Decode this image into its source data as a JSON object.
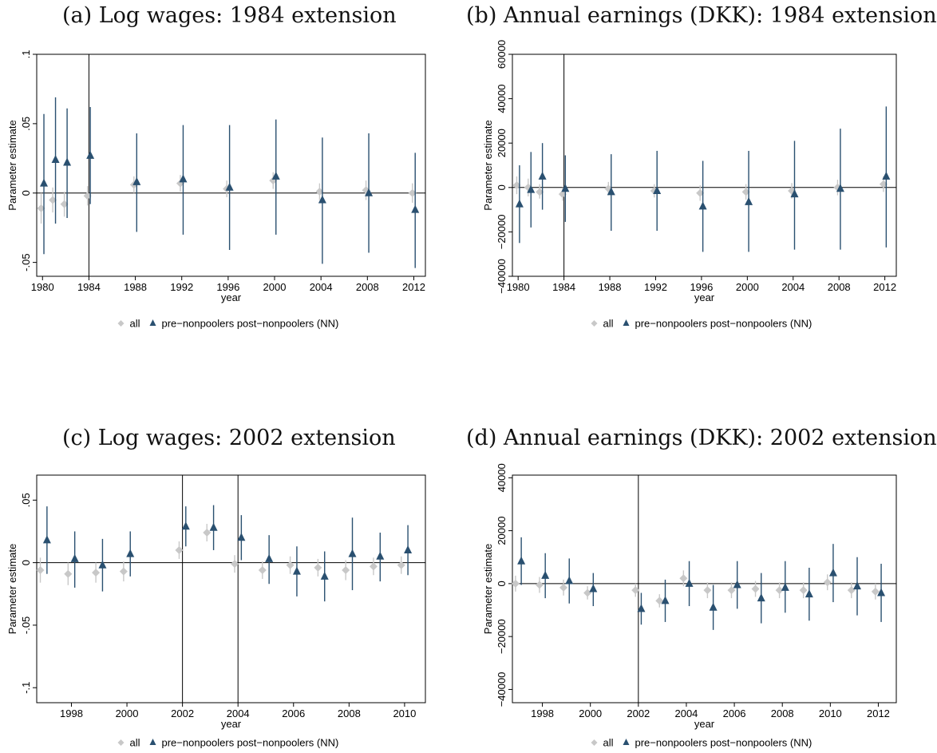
{
  "captions": {
    "a": "(a) Log wages: 1984 extension",
    "b": "(b) Annual earnings (DKK): 1984 extension",
    "c": "(c) Log wages: 2002 extension",
    "d": "(d) Annual earnings (DKK): 2002 extension"
  },
  "colors": {
    "all": "#c8c8c8",
    "nn": "#2a5070"
  },
  "chart_data": [
    {
      "id": "a",
      "type": "scatter",
      "title": "(a) Log wages: 1984 extension",
      "xlabel": "year",
      "ylabel": "Parameter estimate",
      "xlim": [
        1979.5,
        2013
      ],
      "ylim": [
        -0.06,
        0.1
      ],
      "xticks": [
        1980,
        1984,
        1988,
        1992,
        1996,
        2000,
        2004,
        2008,
        2012
      ],
      "xtick_labels": [
        "1980",
        "1984",
        "1988",
        "1992",
        "1996",
        "2000",
        "2004",
        "2008",
        "2012"
      ],
      "yticks": [
        -0.05,
        0,
        0.05,
        0.1
      ],
      "ytick_labels": [
        "-.05",
        "0",
        ".05",
        ".1"
      ],
      "vlines": [
        1984
      ],
      "hline": 0,
      "legend": [
        "all",
        "pre−nonpoolers post−nonpoolers (NN)"
      ],
      "series": [
        {
          "name": "all",
          "marker": "diamond",
          "points": [
            {
              "x": 1980,
              "y": -0.011,
              "lo": -0.022,
              "hi": 0.0
            },
            {
              "x": 1981,
              "y": -0.005,
              "lo": -0.014,
              "hi": 0.004
            },
            {
              "x": 1982,
              "y": -0.008,
              "lo": -0.017,
              "hi": 0.001
            },
            {
              "x": 1984,
              "y": -0.002,
              "lo": -0.009,
              "hi": 0.005
            },
            {
              "x": 1988,
              "y": 0.006,
              "lo": 0.0,
              "hi": 0.012
            },
            {
              "x": 1992,
              "y": 0.007,
              "lo": 0.001,
              "hi": 0.013
            },
            {
              "x": 1996,
              "y": 0.003,
              "lo": -0.003,
              "hi": 0.009
            },
            {
              "x": 2000,
              "y": 0.009,
              "lo": 0.003,
              "hi": 0.015
            },
            {
              "x": 2004,
              "y": 0.001,
              "lo": -0.005,
              "hi": 0.007
            },
            {
              "x": 2008,
              "y": 0.002,
              "lo": -0.005,
              "hi": 0.009
            },
            {
              "x": 2012,
              "y": 0.0,
              "lo": -0.007,
              "hi": 0.007
            }
          ]
        },
        {
          "name": "pre−nonpoolers post−nonpoolers (NN)",
          "marker": "triangle",
          "points": [
            {
              "x": 1980,
              "y": 0.007,
              "lo": -0.044,
              "hi": 0.057
            },
            {
              "x": 1981,
              "y": 0.024,
              "lo": -0.022,
              "hi": 0.069
            },
            {
              "x": 1982,
              "y": 0.022,
              "lo": -0.018,
              "hi": 0.061
            },
            {
              "x": 1984,
              "y": 0.027,
              "lo": -0.008,
              "hi": 0.062
            },
            {
              "x": 1988,
              "y": 0.008,
              "lo": -0.028,
              "hi": 0.043
            },
            {
              "x": 1992,
              "y": 0.01,
              "lo": -0.03,
              "hi": 0.049
            },
            {
              "x": 1996,
              "y": 0.004,
              "lo": -0.041,
              "hi": 0.049
            },
            {
              "x": 2000,
              "y": 0.012,
              "lo": -0.03,
              "hi": 0.053
            },
            {
              "x": 2004,
              "y": -0.005,
              "lo": -0.051,
              "hi": 0.04
            },
            {
              "x": 2008,
              "y": 0.0,
              "lo": -0.043,
              "hi": 0.043
            },
            {
              "x": 2012,
              "y": -0.012,
              "lo": -0.054,
              "hi": 0.029
            }
          ]
        }
      ]
    },
    {
      "id": "b",
      "type": "scatter",
      "title": "(b) Annual earnings (DKK): 1984 extension",
      "xlabel": "year",
      "ylabel": "Parameter estimate",
      "xlim": [
        1979.5,
        2013
      ],
      "ylim": [
        -40000,
        60000
      ],
      "xticks": [
        1980,
        1984,
        1988,
        1992,
        1996,
        2000,
        2004,
        2008,
        2012
      ],
      "xtick_labels": [
        "1980",
        "1984",
        "1988",
        "1992",
        "1996",
        "2000",
        "2004",
        "2008",
        "2012"
      ],
      "yticks": [
        -40000,
        -20000,
        0,
        20000,
        40000,
        60000
      ],
      "ytick_labels": [
        "−40000",
        "−20000",
        "0",
        "20000",
        "40000",
        "60000"
      ],
      "vlines": [
        1984
      ],
      "hline": 0,
      "legend": [
        "all",
        "pre−nonpoolers post−nonpoolers (NN)"
      ],
      "series": [
        {
          "name": "all",
          "marker": "diamond",
          "points": [
            {
              "x": 1980,
              "y": 1000,
              "lo": -3000,
              "hi": 5000
            },
            {
              "x": 1981,
              "y": 0,
              "lo": -4000,
              "hi": 4000
            },
            {
              "x": 1982,
              "y": -2000,
              "lo": -5000,
              "hi": 1500
            },
            {
              "x": 1984,
              "y": -3000,
              "lo": -6000,
              "hi": 0
            },
            {
              "x": 1988,
              "y": -500,
              "lo": -3500,
              "hi": 2500
            },
            {
              "x": 1992,
              "y": -1500,
              "lo": -4500,
              "hi": 1500
            },
            {
              "x": 1996,
              "y": -2500,
              "lo": -6000,
              "hi": 1000
            },
            {
              "x": 2000,
              "y": -2000,
              "lo": -5500,
              "hi": 1500
            },
            {
              "x": 2004,
              "y": -1500,
              "lo": -5000,
              "hi": 2000
            },
            {
              "x": 2008,
              "y": 0,
              "lo": -3500,
              "hi": 3500
            },
            {
              "x": 2012,
              "y": 1500,
              "lo": -2000,
              "hi": 5000
            }
          ]
        },
        {
          "name": "pre−nonpoolers post−nonpoolers (NN)",
          "marker": "triangle",
          "points": [
            {
              "x": 1980,
              "y": -7500,
              "lo": -25000,
              "hi": 10000
            },
            {
              "x": 1981,
              "y": -1000,
              "lo": -18000,
              "hi": 16000
            },
            {
              "x": 1982,
              "y": 5000,
              "lo": -10000,
              "hi": 20000
            },
            {
              "x": 1984,
              "y": -500,
              "lo": -15500,
              "hi": 14500
            },
            {
              "x": 1988,
              "y": -2000,
              "lo": -19500,
              "hi": 15000
            },
            {
              "x": 1992,
              "y": -1500,
              "lo": -19500,
              "hi": 16500
            },
            {
              "x": 1996,
              "y": -8500,
              "lo": -29000,
              "hi": 12000
            },
            {
              "x": 2000,
              "y": -6500,
              "lo": -29000,
              "hi": 16500
            },
            {
              "x": 2004,
              "y": -3000,
              "lo": -28000,
              "hi": 21000
            },
            {
              "x": 2008,
              "y": -500,
              "lo": -28000,
              "hi": 26500
            },
            {
              "x": 2012,
              "y": 5000,
              "lo": -27000,
              "hi": 36500
            }
          ]
        }
      ]
    },
    {
      "id": "c",
      "type": "scatter",
      "title": "(c) Log wages: 2002 extension",
      "xlabel": "year",
      "ylabel": "Parameter estimate",
      "xlim": [
        1996.75,
        2010.75
      ],
      "ylim": [
        -0.112,
        0.07
      ],
      "xticks": [
        1998,
        2000,
        2002,
        2004,
        2006,
        2008,
        2010
      ],
      "xtick_labels": [
        "1998",
        "2000",
        "2002",
        "2004",
        "2006",
        "2008",
        "2010"
      ],
      "yticks": [
        -0.1,
        -0.05,
        0,
        0.05
      ],
      "ytick_labels": [
        "-.1",
        "-.05",
        "0",
        ".05"
      ],
      "vlines": [
        2002,
        2004
      ],
      "hline": 0,
      "legend": [
        "all",
        "pre−nonpoolers post−nonpoolers (NN)"
      ],
      "series": [
        {
          "name": "all",
          "marker": "diamond",
          "points": [
            {
              "x": 1997,
              "y": -0.006,
              "lo": -0.016,
              "hi": 0.004
            },
            {
              "x": 1998,
              "y": -0.009,
              "lo": -0.018,
              "hi": 0.0
            },
            {
              "x": 1999,
              "y": -0.008,
              "lo": -0.016,
              "hi": 0.0
            },
            {
              "x": 2000,
              "y": -0.007,
              "lo": -0.015,
              "hi": 0.001
            },
            {
              "x": 2002,
              "y": 0.01,
              "lo": 0.003,
              "hi": 0.017
            },
            {
              "x": 2003,
              "y": 0.024,
              "lo": 0.017,
              "hi": 0.031
            },
            {
              "x": 2004,
              "y": -0.001,
              "lo": -0.008,
              "hi": 0.006
            },
            {
              "x": 2005,
              "y": -0.006,
              "lo": -0.013,
              "hi": 0.001
            },
            {
              "x": 2006,
              "y": -0.002,
              "lo": -0.009,
              "hi": 0.005
            },
            {
              "x": 2007,
              "y": -0.004,
              "lo": -0.011,
              "hi": 0.003
            },
            {
              "x": 2008,
              "y": -0.006,
              "lo": -0.014,
              "hi": 0.002
            },
            {
              "x": 2009,
              "y": -0.003,
              "lo": -0.01,
              "hi": 0.004
            },
            {
              "x": 2010,
              "y": -0.002,
              "lo": -0.009,
              "hi": 0.005
            }
          ]
        },
        {
          "name": "pre−nonpoolers post−nonpoolers (NN)",
          "marker": "triangle",
          "points": [
            {
              "x": 1997,
              "y": 0.018,
              "lo": -0.009,
              "hi": 0.045
            },
            {
              "x": 1998,
              "y": 0.003,
              "lo": -0.02,
              "hi": 0.025
            },
            {
              "x": 1999,
              "y": -0.002,
              "lo": -0.023,
              "hi": 0.019
            },
            {
              "x": 2000,
              "y": 0.007,
              "lo": -0.011,
              "hi": 0.025
            },
            {
              "x": 2002,
              "y": 0.029,
              "lo": 0.013,
              "hi": 0.045
            },
            {
              "x": 2003,
              "y": 0.028,
              "lo": 0.01,
              "hi": 0.046
            },
            {
              "x": 2004,
              "y": 0.02,
              "lo": 0.002,
              "hi": 0.038
            },
            {
              "x": 2005,
              "y": 0.003,
              "lo": -0.017,
              "hi": 0.022
            },
            {
              "x": 2006,
              "y": -0.007,
              "lo": -0.027,
              "hi": 0.013
            },
            {
              "x": 2007,
              "y": -0.011,
              "lo": -0.031,
              "hi": 0.009
            },
            {
              "x": 2008,
              "y": 0.007,
              "lo": -0.022,
              "hi": 0.036
            },
            {
              "x": 2009,
              "y": 0.005,
              "lo": -0.015,
              "hi": 0.024
            },
            {
              "x": 2010,
              "y": 0.01,
              "lo": -0.01,
              "hi": 0.03
            }
          ]
        }
      ]
    },
    {
      "id": "d",
      "type": "scatter",
      "title": "(d) Annual earnings (DKK): 2002 extension",
      "xlabel": "year",
      "ylabel": "Parameter estimate",
      "xlim": [
        1996.75,
        2012.75
      ],
      "ylim": [
        -45000,
        41000
      ],
      "xticks": [
        1998,
        2000,
        2002,
        2004,
        2006,
        2008,
        2010,
        2012
      ],
      "xtick_labels": [
        "1998",
        "2000",
        "2002",
        "2004",
        "2006",
        "2008",
        "2010",
        "2012"
      ],
      "yticks": [
        -40000,
        -20000,
        0,
        20000,
        40000
      ],
      "ytick_labels": [
        "−40000",
        "−20000",
        "0",
        "20000",
        "40000"
      ],
      "vlines": [
        2002
      ],
      "hline": 0,
      "legend": [
        "all",
        "pre−nonpoolers post−nonpoolers (NN)"
      ],
      "series": [
        {
          "name": "all",
          "marker": "diamond",
          "points": [
            {
              "x": 1997,
              "y": 0,
              "lo": -3000,
              "hi": 3000
            },
            {
              "x": 1998,
              "y": -500,
              "lo": -3500,
              "hi": 2500
            },
            {
              "x": 1999,
              "y": -1500,
              "lo": -4500,
              "hi": 1500
            },
            {
              "x": 2000,
              "y": -3500,
              "lo": -6000,
              "hi": -1000
            },
            {
              "x": 2002,
              "y": -2500,
              "lo": -5000,
              "hi": 0
            },
            {
              "x": 2003,
              "y": -6500,
              "lo": -9000,
              "hi": -4000
            },
            {
              "x": 2004,
              "y": 2000,
              "lo": -1000,
              "hi": 5000
            },
            {
              "x": 2005,
              "y": -2500,
              "lo": -5500,
              "hi": 500
            },
            {
              "x": 2006,
              "y": -2500,
              "lo": -5500,
              "hi": 500
            },
            {
              "x": 2007,
              "y": -2000,
              "lo": -5000,
              "hi": 1000
            },
            {
              "x": 2008,
              "y": -2500,
              "lo": -5500,
              "hi": 500
            },
            {
              "x": 2009,
              "y": -2500,
              "lo": -5500,
              "hi": 500
            },
            {
              "x": 2010,
              "y": 500,
              "lo": -2500,
              "hi": 3500
            },
            {
              "x": 2011,
              "y": -2500,
              "lo": -5500,
              "hi": 500
            },
            {
              "x": 2012,
              "y": -3000,
              "lo": -6000,
              "hi": 0
            }
          ]
        },
        {
          "name": "pre−nonpoolers post−nonpoolers (NN)",
          "marker": "triangle",
          "points": [
            {
              "x": 1997,
              "y": 8500,
              "lo": -500,
              "hi": 17500
            },
            {
              "x": 1998,
              "y": 3000,
              "lo": -5500,
              "hi": 11500
            },
            {
              "x": 1999,
              "y": 1000,
              "lo": -7500,
              "hi": 9500
            },
            {
              "x": 2000,
              "y": -2000,
              "lo": -8500,
              "hi": 4000
            },
            {
              "x": 2002,
              "y": -9500,
              "lo": -15500,
              "hi": -3500
            },
            {
              "x": 2003,
              "y": -6500,
              "lo": -14500,
              "hi": 1500
            },
            {
              "x": 2004,
              "y": 0,
              "lo": -8500,
              "hi": 8500
            },
            {
              "x": 2005,
              "y": -9000,
              "lo": -17500,
              "hi": -500
            },
            {
              "x": 2006,
              "y": -500,
              "lo": -9500,
              "hi": 8500
            },
            {
              "x": 2007,
              "y": -5500,
              "lo": -15000,
              "hi": 4000
            },
            {
              "x": 2008,
              "y": -1500,
              "lo": -11000,
              "hi": 8500
            },
            {
              "x": 2009,
              "y": -4000,
              "lo": -14000,
              "hi": 6000
            },
            {
              "x": 2010,
              "y": 4000,
              "lo": -7000,
              "hi": 15000
            },
            {
              "x": 2011,
              "y": -1000,
              "lo": -12000,
              "hi": 10000
            },
            {
              "x": 2012,
              "y": -3500,
              "lo": -14500,
              "hi": 7500
            }
          ]
        }
      ]
    }
  ]
}
